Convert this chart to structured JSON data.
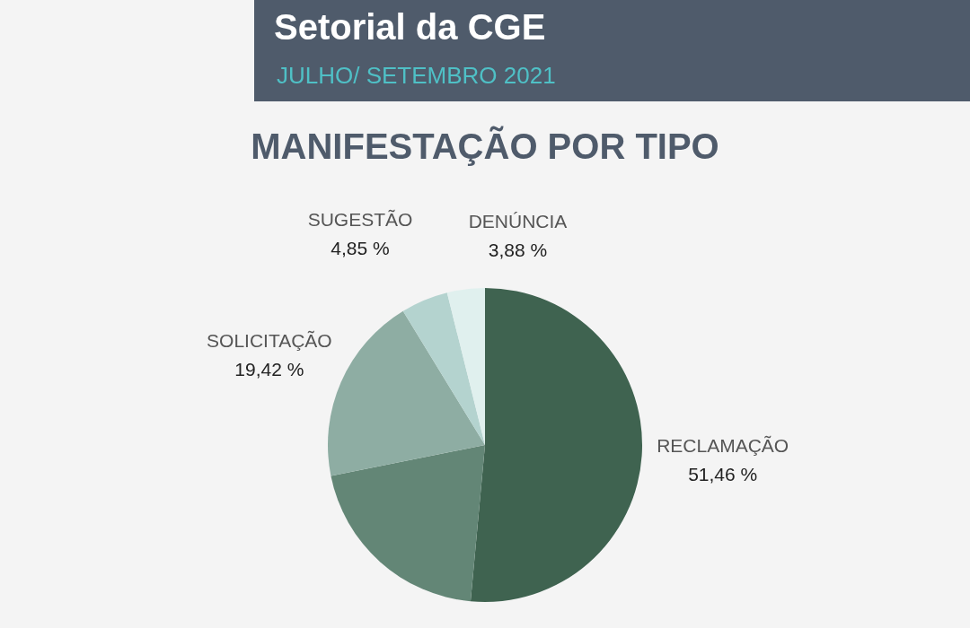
{
  "chart_data": {
    "type": "pie",
    "title": "MANIFESTAÇÃO POR TIPO",
    "subtitle": "JULHO/ SETEMBRO 2021",
    "annotations": [
      "Setorial da CGE"
    ],
    "categories": [
      "RECLAMAÇÃO",
      null,
      "SOLICITAÇÃO",
      "SUGESTÃO",
      "DENÚNCIA"
    ],
    "values": [
      51.46,
      20.39,
      19.42,
      4.85,
      3.88
    ],
    "value_labels": [
      "51,46 %",
      null,
      "19,42 %",
      "4,85 %",
      "3,88 %"
    ],
    "colors": [
      "#3f6350",
      "#638676",
      "#8eada3",
      "#b4d3cf",
      "#e0f0ee"
    ]
  }
}
